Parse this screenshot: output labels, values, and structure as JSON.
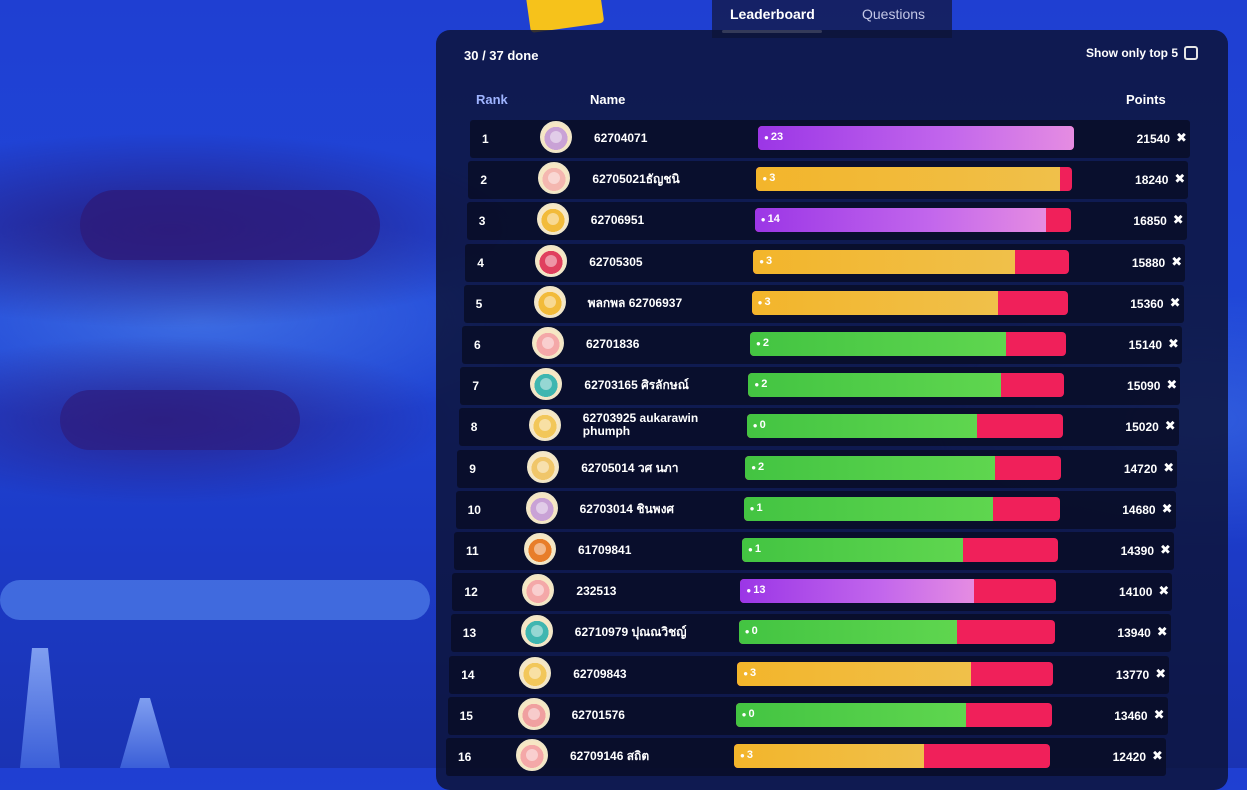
{
  "tabs": [
    {
      "label": "Leaderboard",
      "active": true
    },
    {
      "label": "Questions",
      "active": false
    }
  ],
  "progress_text": "30 / 37 done",
  "top5_toggle": {
    "label": "Show only top 5",
    "checked": false
  },
  "columns": {
    "rank": "Rank",
    "name": "Name",
    "points": "Points"
  },
  "colors": {
    "purple": "#9b36e6",
    "yellow": "#f3b52b",
    "green": "#43c442",
    "incorrect": "#f0205a"
  },
  "icons": {
    "streak": "drop-icon",
    "remove": "close-icon",
    "toggle": "checkbox-icon"
  },
  "rows": [
    {
      "rank": "1",
      "name": "62704071",
      "streak": "23",
      "points": "21540",
      "fill_color": "purple",
      "fill_fraction": 1.0,
      "avatar": "#c9a2d6"
    },
    {
      "rank": "2",
      "name": "62705021ธัญชนิ",
      "streak": "3",
      "points": "18240",
      "fill_color": "yellow",
      "fill_fraction": 0.96,
      "avatar": "#f4b7b0"
    },
    {
      "rank": "3",
      "name": "62706951",
      "streak": "14",
      "points": "16850",
      "fill_color": "purple",
      "fill_fraction": 0.92,
      "avatar": "#f2bb3a"
    },
    {
      "rank": "4",
      "name": "62705305",
      "streak": "3",
      "points": "15880",
      "fill_color": "yellow",
      "fill_fraction": 0.83,
      "avatar": "#e0405e"
    },
    {
      "rank": "5",
      "name": "พลกพล 62706937",
      "streak": "3",
      "points": "15360",
      "fill_color": "yellow",
      "fill_fraction": 0.78,
      "avatar": "#f2bb3a"
    },
    {
      "rank": "6",
      "name": "62701836",
      "streak": "2",
      "points": "15140",
      "fill_color": "green",
      "fill_fraction": 0.81,
      "avatar": "#f4a8a8"
    },
    {
      "rank": "7",
      "name": "62703165 ศิรลักษณ์",
      "streak": "2",
      "points": "15090",
      "fill_color": "green",
      "fill_fraction": 0.8,
      "avatar": "#3fb6b0"
    },
    {
      "rank": "8",
      "name": "62703925 aukarawin phumph",
      "streak": "0",
      "points": "15020",
      "fill_color": "green",
      "fill_fraction": 0.73,
      "avatar": "#f2c75a"
    },
    {
      "rank": "9",
      "name": "62705014 วศ นภา",
      "streak": "2",
      "points": "14720",
      "fill_color": "green",
      "fill_fraction": 0.79,
      "avatar": "#f0c66a"
    },
    {
      "rank": "10",
      "name": "62703014 ชินพงศ",
      "streak": "1",
      "points": "14680",
      "fill_color": "green",
      "fill_fraction": 0.79,
      "avatar": "#c9a2d6"
    },
    {
      "rank": "11",
      "name": "61709841",
      "streak": "1",
      "points": "14390",
      "fill_color": "green",
      "fill_fraction": 0.7,
      "avatar": "#e87e2a"
    },
    {
      "rank": "12",
      "name": "232513",
      "streak": "13",
      "points": "14100",
      "fill_color": "purple",
      "fill_fraction": 0.74,
      "avatar": "#f4a8a8"
    },
    {
      "rank": "13",
      "name": "62710979 ปุณณวิชญ์",
      "streak": "0",
      "points": "13940",
      "fill_color": "green",
      "fill_fraction": 0.69,
      "avatar": "#3fb6b0"
    },
    {
      "rank": "14",
      "name": "62709843",
      "streak": "3",
      "points": "13770",
      "fill_color": "yellow",
      "fill_fraction": 0.74,
      "avatar": "#f2c75a"
    },
    {
      "rank": "15",
      "name": "62701576",
      "streak": "0",
      "points": "13460",
      "fill_color": "green",
      "fill_fraction": 0.73,
      "avatar": "#f0a0a0"
    },
    {
      "rank": "16",
      "name": "62709146 สถิต",
      "streak": "3",
      "points": "12420",
      "fill_color": "yellow",
      "fill_fraction": 0.6,
      "avatar": "#f4a8a8"
    }
  ]
}
